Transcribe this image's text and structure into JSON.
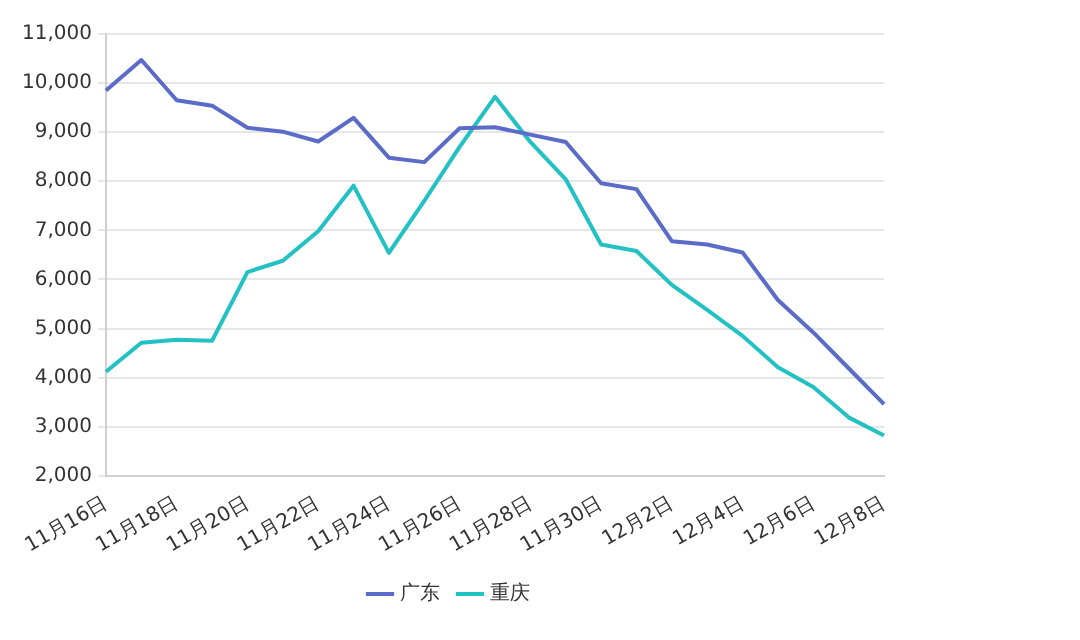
{
  "chart_data": {
    "type": "line",
    "categories": [
      "11月16日",
      null,
      "11月18日",
      null,
      "11月20日",
      null,
      "11月22日",
      null,
      "11月24日",
      null,
      "11月26日",
      null,
      "11月28日",
      null,
      "11月30日",
      null,
      "12月2日",
      null,
      "12月4日",
      null,
      "12月6日",
      null,
      "12月8日"
    ],
    "series": [
      {
        "name": "广东",
        "color": "#5b6bc8",
        "values": [
          9850,
          10470,
          9650,
          9540,
          9090,
          9010,
          8810,
          9290,
          8480,
          8390,
          9080,
          9100,
          8950,
          8800,
          7960,
          7840,
          6780,
          6710,
          6550,
          5580,
          4920,
          4190,
          3460
        ]
      },
      {
        "name": "重庆",
        "color": "#22c1c3",
        "values": [
          4120,
          4710,
          4770,
          4750,
          6150,
          6380,
          6980,
          7910,
          6540,
          7600,
          8700,
          9720,
          8800,
          8040,
          6710,
          6580,
          5890,
          5380,
          4850,
          4210,
          3810,
          3190,
          2820
        ]
      }
    ],
    "ylim": [
      2000,
      11000
    ],
    "yticks": [
      {
        "value": 2000,
        "label": "2,000"
      },
      {
        "value": 3000,
        "label": "3,000"
      },
      {
        "value": 4000,
        "label": "4,000"
      },
      {
        "value": 5000,
        "label": "5,000"
      },
      {
        "value": 6000,
        "label": "6,000"
      },
      {
        "value": 7000,
        "label": "7,000"
      },
      {
        "value": 8000,
        "label": "8,000"
      },
      {
        "value": 9000,
        "label": "9,000"
      },
      {
        "value": 10000,
        "label": "10,000"
      },
      {
        "value": 11000,
        "label": "11,000"
      }
    ],
    "grid": "y",
    "legend": "bottom",
    "marker": "none",
    "line_style": "solid"
  }
}
